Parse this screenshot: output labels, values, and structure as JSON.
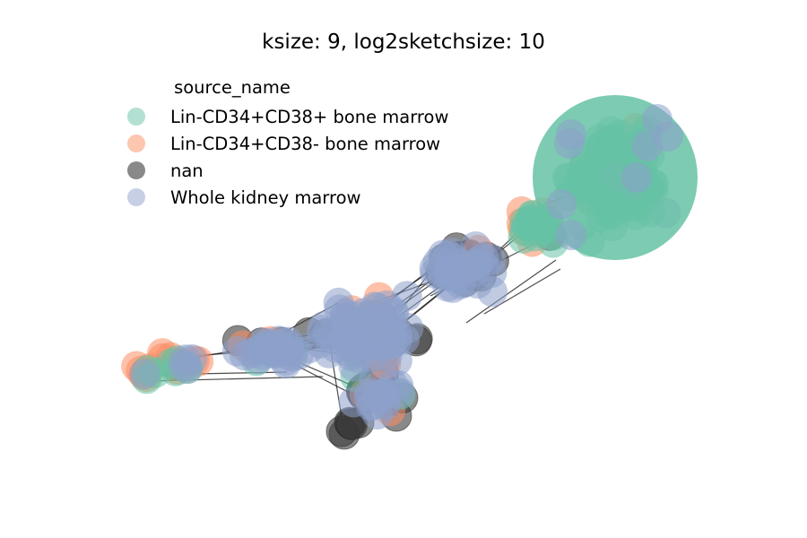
{
  "title": "ksize: 9, log2sketchsize: 10",
  "legend": {
    "title": "source_name",
    "items": [
      {
        "label": "Lin-CD34+CD38+ bone marrow",
        "color": "#66c2a5"
      },
      {
        "label": "Lin-CD34+CD38- bone marrow",
        "color": "#fc8d62"
      },
      {
        "label": "nan",
        "color": "#3a3a3a"
      },
      {
        "label": "Whole kidney marrow",
        "color": "#8da0cb"
      }
    ]
  },
  "graph": {
    "node_alpha": 0.55,
    "edge_color": "#000000"
  }
}
